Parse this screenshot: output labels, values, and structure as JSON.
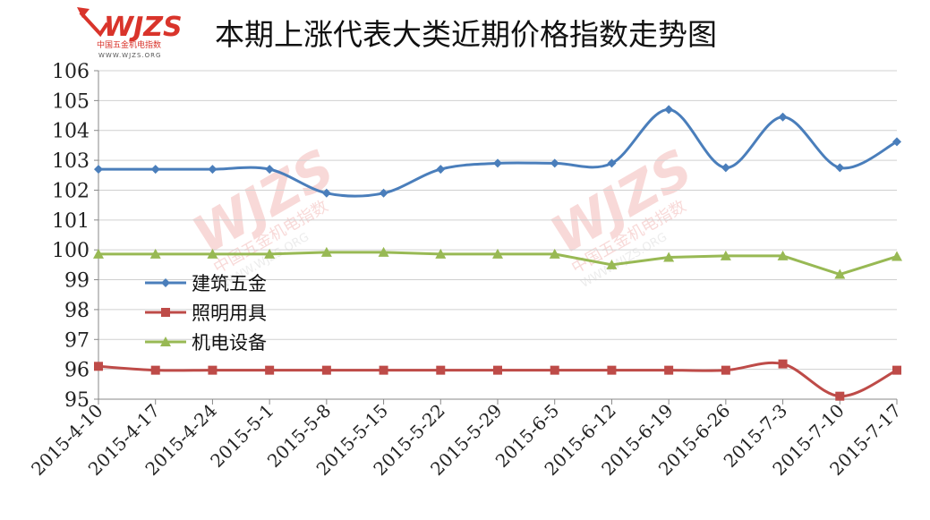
{
  "logo": {
    "wordmark": "WJZS",
    "subtitle": "中国五金机电指数",
    "url": "WWW.WJZS.ORG"
  },
  "chart_data": {
    "type": "line",
    "title": "本期上涨代表大类近期价格指数走势图",
    "xlabel": "",
    "ylabel": "",
    "categories": [
      "2015-4-10",
      "2015-4-17",
      "2015-4-24",
      "2015-5-1",
      "2015-5-8",
      "2015-5-15",
      "2015-5-22",
      "2015-5-29",
      "2015-6-5",
      "2015-6-12",
      "2015-6-19",
      "2015-6-26",
      "2015-7-3",
      "2015-7-10",
      "2015-7-17"
    ],
    "ylim": [
      95,
      106
    ],
    "yticks": [
      95,
      96,
      97,
      98,
      99,
      100,
      101,
      102,
      103,
      104,
      105,
      106
    ],
    "grid": true,
    "legend_position": "center-left",
    "series": [
      {
        "name": "建筑五金",
        "color": "#4a7ebb",
        "marker": "diamond",
        "smooth": true,
        "values": [
          102.7,
          102.7,
          102.7,
          102.7,
          101.9,
          101.9,
          102.7,
          102.9,
          102.9,
          102.9,
          104.7,
          102.75,
          104.45,
          102.75,
          103.62
        ]
      },
      {
        "name": "照明用具",
        "color": "#be4b48",
        "marker": "square",
        "smooth": true,
        "values": [
          96.1,
          95.97,
          95.97,
          95.97,
          95.97,
          95.97,
          95.97,
          95.97,
          95.97,
          95.97,
          95.97,
          95.97,
          96.18,
          95.1,
          95.97
        ]
      },
      {
        "name": "机电设备",
        "color": "#98b954",
        "marker": "triangle",
        "smooth": false,
        "values": [
          99.86,
          99.86,
          99.86,
          99.86,
          99.92,
          99.92,
          99.86,
          99.86,
          99.86,
          99.5,
          99.75,
          99.8,
          99.8,
          99.18,
          99.78
        ]
      }
    ]
  }
}
